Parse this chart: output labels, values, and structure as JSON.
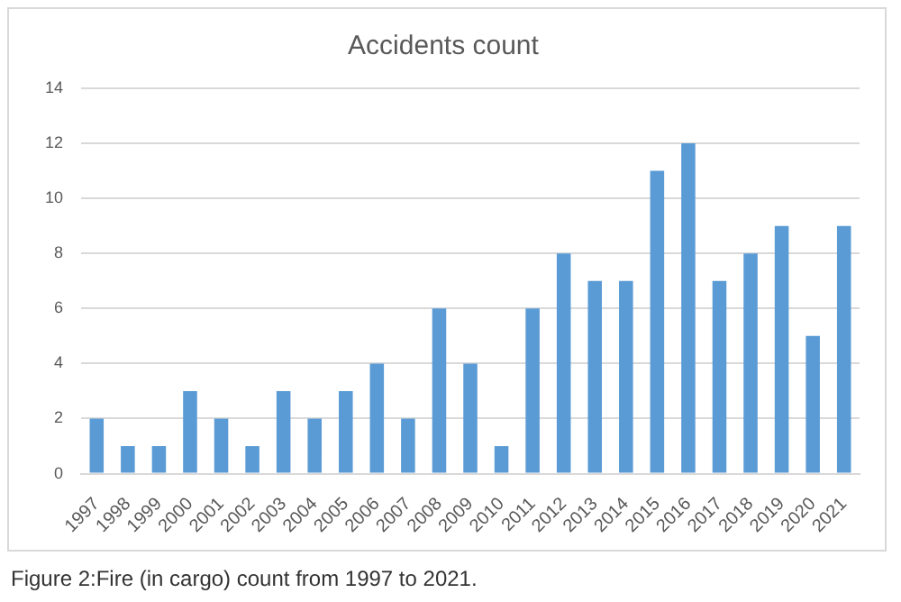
{
  "chart_data": {
    "type": "bar",
    "title": "Accidents count",
    "categories": [
      "1997",
      "1998",
      "1999",
      "2000",
      "2001",
      "2002",
      "2003",
      "2004",
      "2005",
      "2006",
      "2007",
      "2008",
      "2009",
      "2010",
      "2011",
      "2012",
      "2013",
      "2014",
      "2015",
      "2016",
      "2017",
      "2018",
      "2019",
      "2020",
      "2021"
    ],
    "values": [
      2,
      1,
      1,
      3,
      2,
      1,
      3,
      2,
      3,
      4,
      2,
      6,
      4,
      1,
      6,
      8,
      7,
      7,
      11,
      12,
      7,
      8,
      9,
      5,
      9
    ],
    "color": "#5b9bd5",
    "ylim": [
      0,
      14
    ],
    "yticks": [
      0,
      2,
      4,
      6,
      8,
      10,
      12,
      14
    ],
    "grid": "y",
    "legend": false,
    "annotations": [
      "Figure 2:Fire (in cargo) count from 1997 to 2021."
    ]
  }
}
